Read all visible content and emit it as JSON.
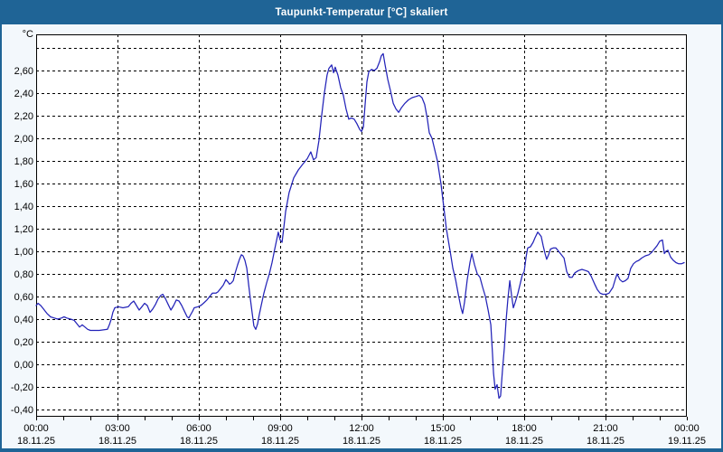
{
  "window": {
    "title": "Taupunkt-Temperatur [°C] skaliert"
  },
  "colors": {
    "titlebar_bg": "#1f6496",
    "frame": "#1f6496",
    "page_bg": "#f3f8fc",
    "plot_bg": "#ffffff",
    "grid": "#000000",
    "axis": "#000000",
    "text": "#000000",
    "line": "#2323b8"
  },
  "chart_data": {
    "type": "line",
    "title": "Taupunkt-Temperatur [°C] skaliert",
    "ylabel_unit": "°C",
    "xlabel": "",
    "grid": "dashed",
    "legend": "none",
    "ylim": [
      -0.46,
      2.92
    ],
    "xlim_hours": [
      0,
      24
    ],
    "y_ticks": [
      {
        "value": 2.8,
        "label": ""
      },
      {
        "value": 2.6,
        "label": "2,60"
      },
      {
        "value": 2.4,
        "label": "2,40"
      },
      {
        "value": 2.2,
        "label": "2,20"
      },
      {
        "value": 2.0,
        "label": "2,00"
      },
      {
        "value": 1.8,
        "label": "1,80"
      },
      {
        "value": 1.6,
        "label": "1,60"
      },
      {
        "value": 1.4,
        "label": "1,40"
      },
      {
        "value": 1.2,
        "label": "1,20"
      },
      {
        "value": 1.0,
        "label": "1,00"
      },
      {
        "value": 0.8,
        "label": "0,80"
      },
      {
        "value": 0.6,
        "label": "0,60"
      },
      {
        "value": 0.4,
        "label": "0,40"
      },
      {
        "value": 0.2,
        "label": "0,20"
      },
      {
        "value": 0.0,
        "label": "0,00"
      },
      {
        "value": -0.2,
        "label": "-0,20"
      },
      {
        "value": -0.4,
        "label": "-0,40"
      }
    ],
    "x_minor_tick_step_hours": 1,
    "x_ticks": [
      {
        "hour": 0,
        "time": "00:00",
        "date": "18.11.25"
      },
      {
        "hour": 3,
        "time": "03:00",
        "date": "18.11.25"
      },
      {
        "hour": 6,
        "time": "06:00",
        "date": "18.11.25"
      },
      {
        "hour": 9,
        "time": "09:00",
        "date": "18.11.25"
      },
      {
        "hour": 12,
        "time": "12:00",
        "date": "18.11.25"
      },
      {
        "hour": 15,
        "time": "15:00",
        "date": "18.11.25"
      },
      {
        "hour": 18,
        "time": "18:00",
        "date": "18.11.25"
      },
      {
        "hour": 21,
        "time": "21:00",
        "date": "18.11.25"
      },
      {
        "hour": 24,
        "time": "00:00",
        "date": "19.11.25"
      }
    ],
    "series": [
      {
        "name": "Taupunkt-Temperatur",
        "color": "#2323b8",
        "points": [
          [
            0.0,
            0.52
          ],
          [
            0.07,
            0.54
          ],
          [
            0.17,
            0.52
          ],
          [
            0.27,
            0.49
          ],
          [
            0.4,
            0.45
          ],
          [
            0.53,
            0.42
          ],
          [
            0.67,
            0.41
          ],
          [
            0.8,
            0.4
          ],
          [
            0.93,
            0.41
          ],
          [
            1.03,
            0.42
          ],
          [
            1.13,
            0.41
          ],
          [
            1.27,
            0.4
          ],
          [
            1.4,
            0.39
          ],
          [
            1.5,
            0.36
          ],
          [
            1.6,
            0.33
          ],
          [
            1.7,
            0.35
          ],
          [
            1.8,
            0.33
          ],
          [
            1.9,
            0.31
          ],
          [
            2.0,
            0.3
          ],
          [
            2.33,
            0.3
          ],
          [
            2.63,
            0.31
          ],
          [
            2.7,
            0.35
          ],
          [
            2.77,
            0.4
          ],
          [
            2.83,
            0.46
          ],
          [
            2.9,
            0.5
          ],
          [
            3.03,
            0.51
          ],
          [
            3.2,
            0.5
          ],
          [
            3.4,
            0.51
          ],
          [
            3.5,
            0.54
          ],
          [
            3.6,
            0.56
          ],
          [
            3.7,
            0.52
          ],
          [
            3.8,
            0.48
          ],
          [
            3.9,
            0.51
          ],
          [
            4.0,
            0.54
          ],
          [
            4.1,
            0.52
          ],
          [
            4.2,
            0.46
          ],
          [
            4.3,
            0.49
          ],
          [
            4.4,
            0.53
          ],
          [
            4.5,
            0.58
          ],
          [
            4.6,
            0.61
          ],
          [
            4.67,
            0.62
          ],
          [
            4.77,
            0.58
          ],
          [
            4.87,
            0.53
          ],
          [
            4.97,
            0.48
          ],
          [
            5.07,
            0.52
          ],
          [
            5.17,
            0.57
          ],
          [
            5.27,
            0.56
          ],
          [
            5.37,
            0.52
          ],
          [
            5.47,
            0.47
          ],
          [
            5.57,
            0.42
          ],
          [
            5.63,
            0.41
          ],
          [
            5.7,
            0.44
          ],
          [
            5.77,
            0.47
          ],
          [
            5.83,
            0.5
          ],
          [
            5.97,
            0.51
          ],
          [
            6.07,
            0.52
          ],
          [
            6.17,
            0.54
          ],
          [
            6.3,
            0.57
          ],
          [
            6.4,
            0.6
          ],
          [
            6.5,
            0.63
          ],
          [
            6.63,
            0.63
          ],
          [
            6.7,
            0.64
          ],
          [
            6.8,
            0.67
          ],
          [
            6.9,
            0.7
          ],
          [
            7.0,
            0.75
          ],
          [
            7.07,
            0.73
          ],
          [
            7.13,
            0.71
          ],
          [
            7.2,
            0.72
          ],
          [
            7.27,
            0.74
          ],
          [
            7.33,
            0.8
          ],
          [
            7.43,
            0.88
          ],
          [
            7.5,
            0.93
          ],
          [
            7.57,
            0.97
          ],
          [
            7.63,
            0.96
          ],
          [
            7.7,
            0.92
          ],
          [
            7.77,
            0.85
          ],
          [
            7.83,
            0.72
          ],
          [
            7.9,
            0.58
          ],
          [
            7.97,
            0.45
          ],
          [
            8.03,
            0.34
          ],
          [
            8.1,
            0.31
          ],
          [
            8.17,
            0.36
          ],
          [
            8.23,
            0.44
          ],
          [
            8.3,
            0.52
          ],
          [
            8.4,
            0.63
          ],
          [
            8.5,
            0.72
          ],
          [
            8.6,
            0.8
          ],
          [
            8.7,
            0.9
          ],
          [
            8.8,
            1.02
          ],
          [
            8.87,
            1.1
          ],
          [
            8.93,
            1.17
          ],
          [
            9.0,
            1.1
          ],
          [
            9.07,
            1.08
          ],
          [
            9.13,
            1.2
          ],
          [
            9.2,
            1.35
          ],
          [
            9.33,
            1.52
          ],
          [
            9.5,
            1.65
          ],
          [
            9.67,
            1.72
          ],
          [
            9.83,
            1.77
          ],
          [
            10.0,
            1.82
          ],
          [
            10.13,
            1.88
          ],
          [
            10.23,
            1.81
          ],
          [
            10.33,
            1.83
          ],
          [
            10.43,
            1.98
          ],
          [
            10.53,
            2.2
          ],
          [
            10.63,
            2.4
          ],
          [
            10.73,
            2.56
          ],
          [
            10.8,
            2.62
          ],
          [
            10.9,
            2.65
          ],
          [
            10.97,
            2.58
          ],
          [
            11.03,
            2.63
          ],
          [
            11.13,
            2.56
          ],
          [
            11.23,
            2.45
          ],
          [
            11.33,
            2.38
          ],
          [
            11.43,
            2.26
          ],
          [
            11.53,
            2.17
          ],
          [
            11.63,
            2.18
          ],
          [
            11.73,
            2.17
          ],
          [
            11.83,
            2.13
          ],
          [
            11.93,
            2.08
          ],
          [
            12.0,
            2.06
          ],
          [
            12.07,
            2.1
          ],
          [
            12.13,
            2.29
          ],
          [
            12.2,
            2.5
          ],
          [
            12.27,
            2.59
          ],
          [
            12.37,
            2.61
          ],
          [
            12.47,
            2.6
          ],
          [
            12.57,
            2.62
          ],
          [
            12.67,
            2.68
          ],
          [
            12.73,
            2.73
          ],
          [
            12.8,
            2.75
          ],
          [
            12.87,
            2.65
          ],
          [
            12.97,
            2.52
          ],
          [
            13.07,
            2.42
          ],
          [
            13.17,
            2.31
          ],
          [
            13.27,
            2.26
          ],
          [
            13.37,
            2.23
          ],
          [
            13.47,
            2.27
          ],
          [
            13.6,
            2.31
          ],
          [
            13.73,
            2.34
          ],
          [
            13.87,
            2.36
          ],
          [
            14.0,
            2.37
          ],
          [
            14.13,
            2.38
          ],
          [
            14.23,
            2.36
          ],
          [
            14.33,
            2.3
          ],
          [
            14.43,
            2.17
          ],
          [
            14.5,
            2.05
          ],
          [
            14.6,
            2.0
          ],
          [
            14.7,
            1.9
          ],
          [
            14.8,
            1.8
          ],
          [
            14.93,
            1.6
          ],
          [
            15.03,
            1.4
          ],
          [
            15.13,
            1.2
          ],
          [
            15.27,
            1.0
          ],
          [
            15.37,
            0.85
          ],
          [
            15.47,
            0.75
          ],
          [
            15.57,
            0.62
          ],
          [
            15.67,
            0.5
          ],
          [
            15.73,
            0.45
          ],
          [
            15.8,
            0.55
          ],
          [
            15.9,
            0.75
          ],
          [
            16.0,
            0.9
          ],
          [
            16.07,
            0.98
          ],
          [
            16.17,
            0.88
          ],
          [
            16.27,
            0.8
          ],
          [
            16.37,
            0.77
          ],
          [
            16.47,
            0.68
          ],
          [
            16.57,
            0.6
          ],
          [
            16.67,
            0.48
          ],
          [
            16.77,
            0.35
          ],
          [
            16.83,
            0.1
          ],
          [
            16.87,
            -0.08
          ],
          [
            16.93,
            -0.22
          ],
          [
            17.0,
            -0.18
          ],
          [
            17.07,
            -0.3
          ],
          [
            17.13,
            -0.28
          ],
          [
            17.2,
            -0.05
          ],
          [
            17.27,
            0.15
          ],
          [
            17.33,
            0.38
          ],
          [
            17.4,
            0.58
          ],
          [
            17.47,
            0.74
          ],
          [
            17.53,
            0.62
          ],
          [
            17.6,
            0.5
          ],
          [
            17.67,
            0.55
          ],
          [
            17.77,
            0.63
          ],
          [
            17.87,
            0.73
          ],
          [
            17.93,
            0.79
          ],
          [
            18.0,
            0.82
          ],
          [
            18.07,
            0.95
          ],
          [
            18.13,
            1.03
          ],
          [
            18.23,
            1.04
          ],
          [
            18.33,
            1.08
          ],
          [
            18.4,
            1.12
          ],
          [
            18.5,
            1.17
          ],
          [
            18.57,
            1.15
          ],
          [
            18.63,
            1.13
          ],
          [
            18.7,
            1.05
          ],
          [
            18.77,
            0.98
          ],
          [
            18.83,
            0.93
          ],
          [
            18.9,
            0.97
          ],
          [
            18.97,
            1.02
          ],
          [
            19.07,
            1.03
          ],
          [
            19.17,
            1.03
          ],
          [
            19.27,
            1.0
          ],
          [
            19.37,
            0.97
          ],
          [
            19.47,
            0.94
          ],
          [
            19.57,
            0.82
          ],
          [
            19.67,
            0.77
          ],
          [
            19.77,
            0.77
          ],
          [
            19.87,
            0.81
          ],
          [
            20.0,
            0.83
          ],
          [
            20.13,
            0.84
          ],
          [
            20.27,
            0.83
          ],
          [
            20.37,
            0.82
          ],
          [
            20.47,
            0.78
          ],
          [
            20.6,
            0.71
          ],
          [
            20.7,
            0.66
          ],
          [
            20.8,
            0.63
          ],
          [
            20.9,
            0.62
          ],
          [
            21.03,
            0.62
          ],
          [
            21.13,
            0.63
          ],
          [
            21.27,
            0.68
          ],
          [
            21.37,
            0.76
          ],
          [
            21.43,
            0.8
          ],
          [
            21.53,
            0.75
          ],
          [
            21.63,
            0.73
          ],
          [
            21.73,
            0.74
          ],
          [
            21.83,
            0.76
          ],
          [
            21.93,
            0.85
          ],
          [
            22.03,
            0.89
          ],
          [
            22.13,
            0.91
          ],
          [
            22.23,
            0.92
          ],
          [
            22.33,
            0.94
          ],
          [
            22.47,
            0.96
          ],
          [
            22.6,
            0.97
          ],
          [
            22.7,
            0.99
          ],
          [
            22.8,
            1.02
          ],
          [
            22.9,
            1.05
          ],
          [
            23.0,
            1.09
          ],
          [
            23.1,
            1.1
          ],
          [
            23.17,
            0.98
          ],
          [
            23.23,
            1.0
          ],
          [
            23.3,
            1.01
          ],
          [
            23.4,
            0.95
          ],
          [
            23.5,
            0.92
          ],
          [
            23.6,
            0.9
          ],
          [
            23.7,
            0.89
          ],
          [
            23.8,
            0.89
          ],
          [
            23.9,
            0.9
          ]
        ]
      }
    ]
  }
}
